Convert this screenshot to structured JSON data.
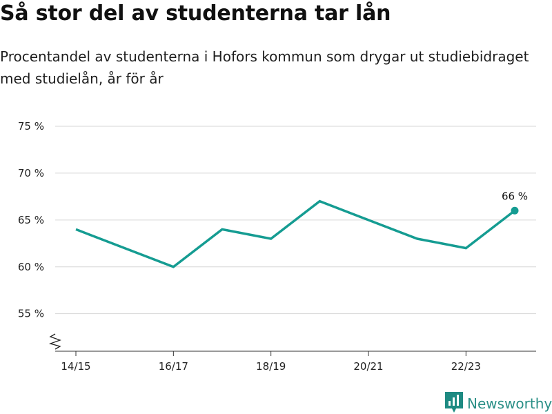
{
  "title": "Så stor del av studenterna tar lån",
  "subtitle": "Procentandel av studenterna i Hofors kommun som drygar ut studiebidraget med studielån, år för år",
  "brand": {
    "name": "Newsworthy",
    "color": "#1e8a82",
    "icon": "newsworthy-logo-icon"
  },
  "chart_data": {
    "type": "line",
    "x": [
      "14/15",
      "15/16",
      "16/17",
      "17/18",
      "18/19",
      "19/20",
      "20/21",
      "21/22",
      "22/23",
      "23/24"
    ],
    "series": [
      {
        "values": [
          64,
          62,
          60,
          64,
          63,
          67,
          65,
          63,
          62,
          66
        ],
        "color": "#159c92"
      }
    ],
    "x_tick_labels": [
      "14/15",
      "16/17",
      "18/19",
      "20/21",
      "22/23"
    ],
    "y_ticks": [
      55,
      60,
      65,
      70,
      75
    ],
    "y_tick_labels": [
      "55 %",
      "60 %",
      "65 %",
      "70 %",
      "75 %"
    ],
    "ylim": [
      51,
      75
    ],
    "y_axis_break": true,
    "grid": "horizontal",
    "end_label": "66 %",
    "xlabel": "",
    "ylabel": ""
  }
}
